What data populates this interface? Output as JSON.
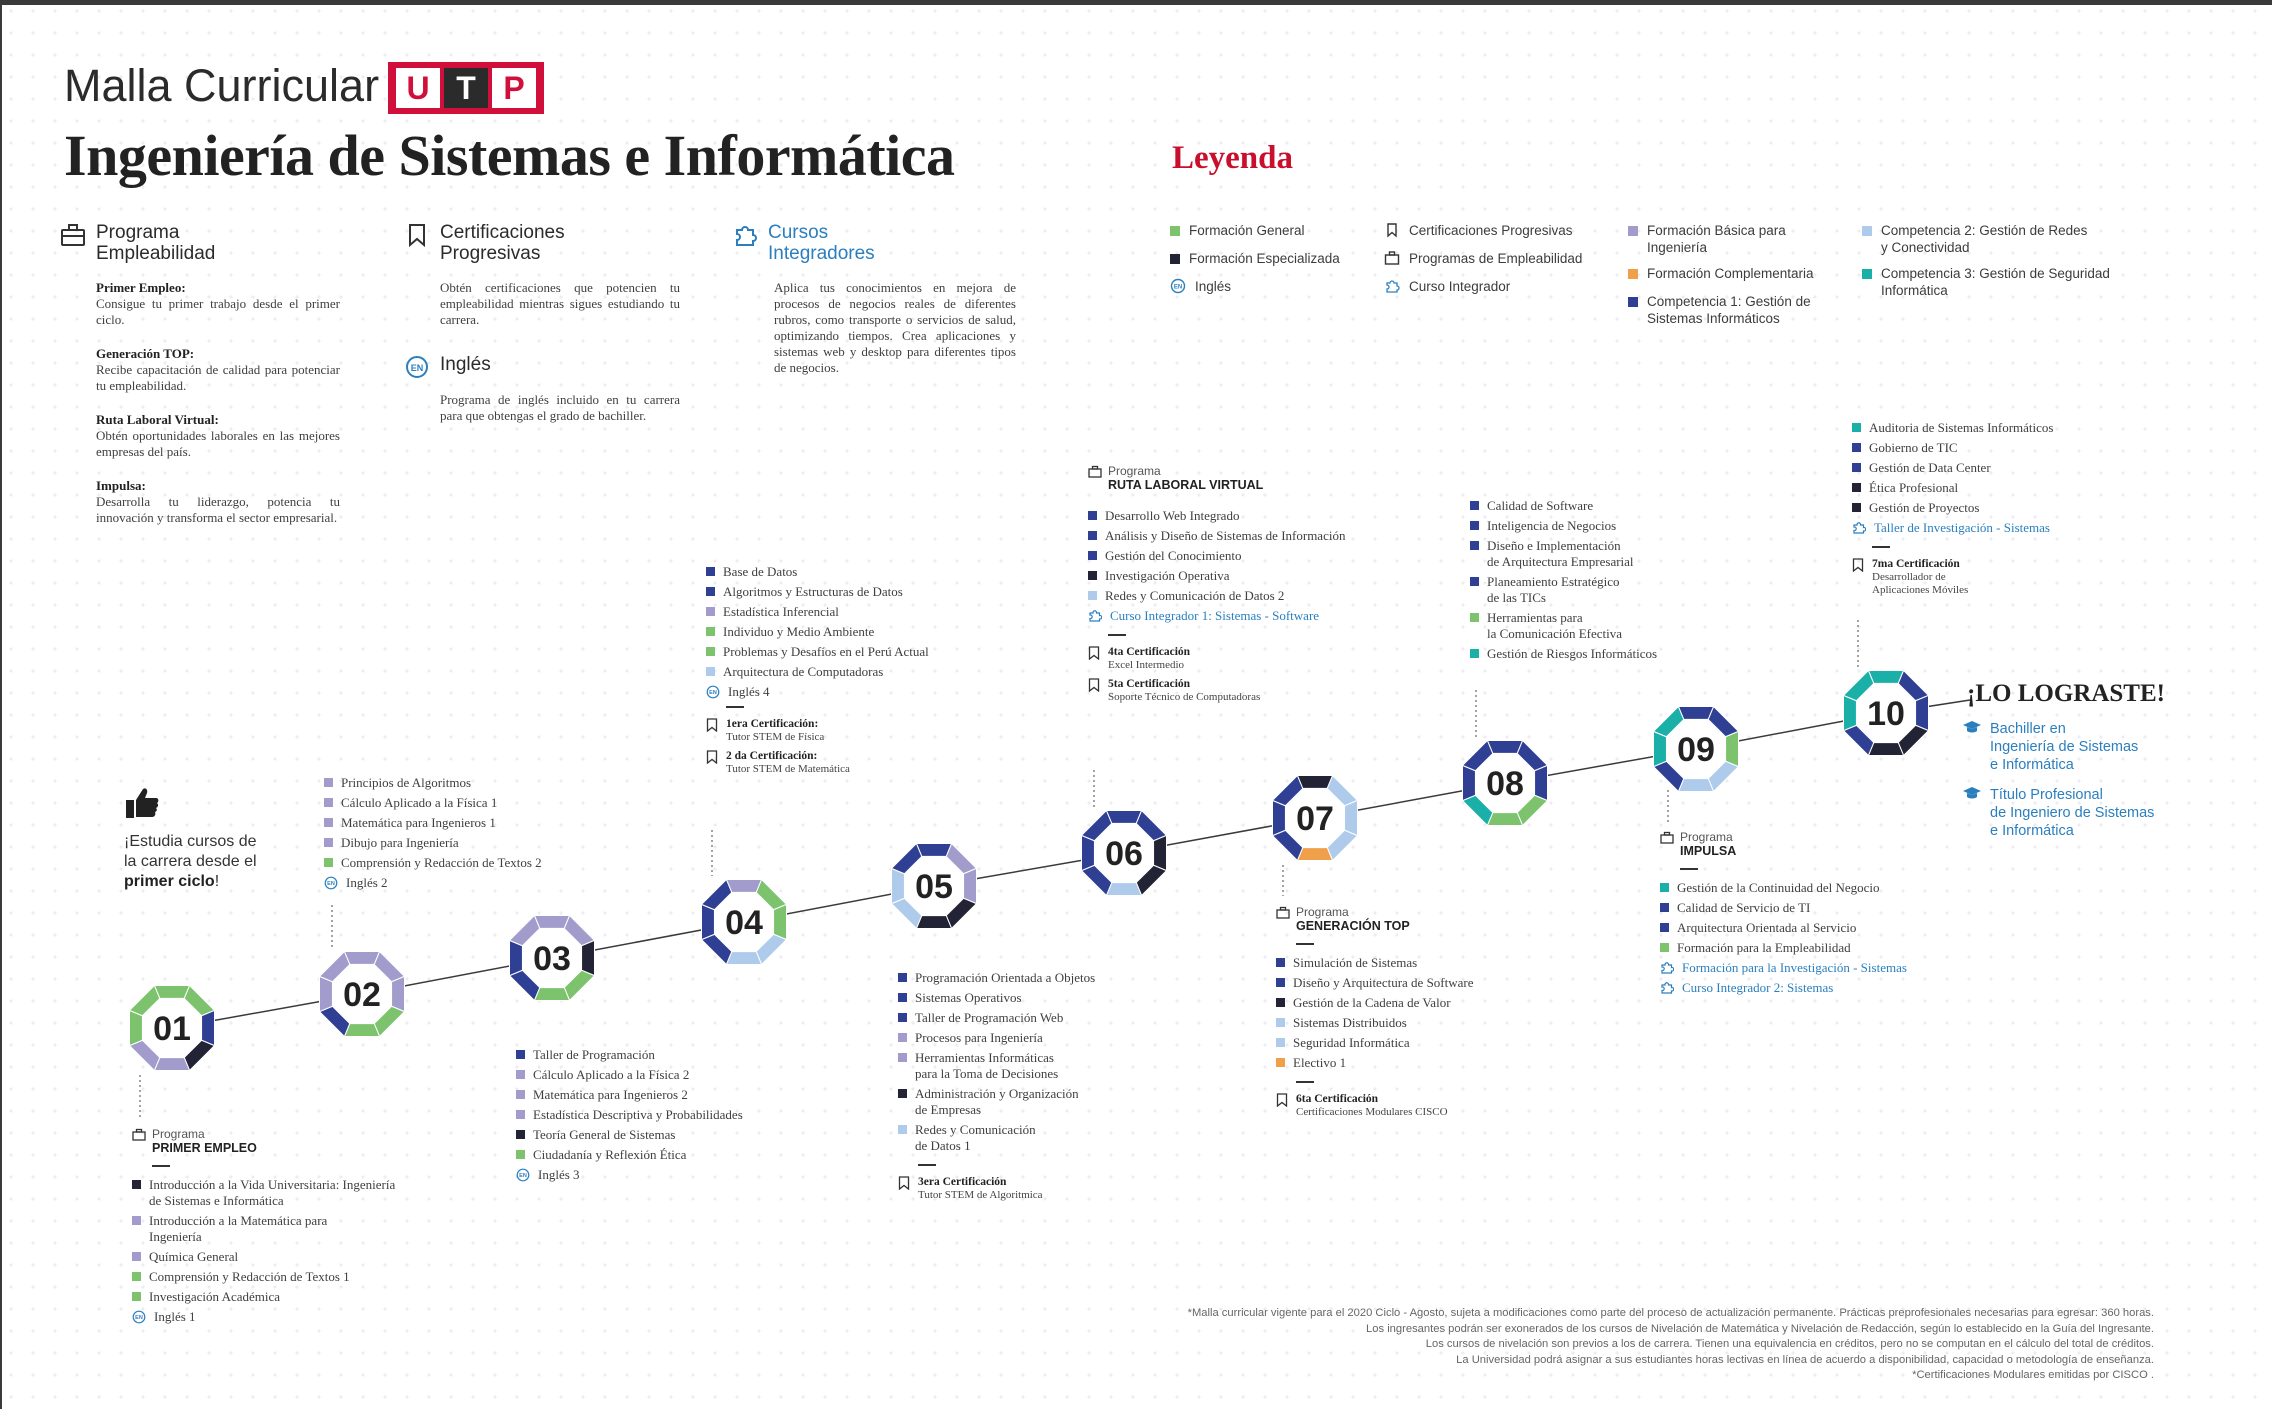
{
  "header": {
    "malla_title": "Malla Curricular",
    "logo_letters": [
      "U",
      "T",
      "P"
    ],
    "career_title": "Ingeniería de Sistemas e Informática",
    "legend_title": "Leyenda"
  },
  "programa_empleabilidad": {
    "title": "Programa\nEmpleabilidad",
    "items": [
      {
        "head": "Primer Empleo:",
        "text": "Consigue tu primer trabajo desde el primer ciclo."
      },
      {
        "head": "Generación TOP:",
        "text": "Recibe capacitación de calidad para potenciar tu empleabilidad."
      },
      {
        "head": "Ruta Laboral Virtual:",
        "text": "Obtén oportunidades laborales en las mejores empresas del país."
      },
      {
        "head": "Impulsa:",
        "text": "Desarrolla tu liderazgo, potencia tu innovación y transforma el sector empresarial."
      }
    ]
  },
  "certificaciones": {
    "title": "Certificaciones\nProgresivas",
    "text": "Obtén certificaciones que potencien tu empleabilidad mientras sigues estudiando tu carrera."
  },
  "ingles": {
    "title": "Inglés",
    "text": "Programa de inglés incluido en tu carrera para que obtengas el grado de bachiller."
  },
  "cursos_integradores": {
    "title": "Cursos\nIntegradores",
    "text": "Aplica tus conocimientos en mejora de procesos de negocios reales de diferentes rubros, como transporte o servicios de salud, optimizando tiempos. Crea aplicaciones y sistemas web y desktop para diferentes tipos de negocios."
  },
  "legend": {
    "col1": [
      {
        "label": "Formación General",
        "color": "#7dc36e"
      },
      {
        "label": "Formación Especializada",
        "color": "#232336"
      },
      {
        "label": "Inglés",
        "icon": "en-icon"
      }
    ],
    "col2": [
      {
        "label": "Certificaciones Progresivas",
        "icon": "bookmark-icon"
      },
      {
        "label": "Programas de Empleabilidad",
        "icon": "briefcase-icon"
      },
      {
        "label": "Curso Integrador",
        "icon": "puzzle-icon"
      }
    ],
    "col3": [
      {
        "label": "Formación Básica para\nIngeniería",
        "color": "#a19ccb"
      },
      {
        "label": "Formación Complementaria",
        "color": "#f0a04a"
      },
      {
        "label": "Competencia 1: Gestión de\nSistemas Informáticos",
        "color": "#2f3f93"
      }
    ],
    "col4": [
      {
        "label": "Competencia 2: Gestión de Redes\ny Conectividad",
        "color": "#aecbeb"
      },
      {
        "label": "Competencia 3: Gestión de Seguridad\nInformática",
        "color": "#1ab0a8"
      }
    ]
  },
  "colors": {
    "general": "#7dc36e",
    "especializada": "#232336",
    "basica": "#a19ccb",
    "complementaria": "#f0a04a",
    "comp1": "#2f3f93",
    "comp2": "#aecbeb",
    "comp3": "#1ab0a8",
    "blue_link": "#2b7fbf",
    "red": "#c8102e"
  },
  "cycles": [
    {
      "num": "01",
      "segments": [
        "general",
        "general",
        "comp1",
        "especializada",
        "basica",
        "basica",
        "general",
        "general"
      ]
    },
    {
      "num": "02",
      "segments": [
        "basica",
        "basica",
        "basica",
        "general",
        "general",
        "comp1",
        "basica",
        "basica"
      ]
    },
    {
      "num": "03",
      "segments": [
        "basica",
        "basica",
        "especializada",
        "general",
        "general",
        "comp1",
        "comp1",
        "basica"
      ]
    },
    {
      "num": "04",
      "segments": [
        "basica",
        "general",
        "general",
        "comp2",
        "comp2",
        "comp1",
        "comp1",
        "comp1"
      ]
    },
    {
      "num": "05",
      "segments": [
        "comp1",
        "basica",
        "basica",
        "especializada",
        "especializada",
        "comp2",
        "comp2",
        "comp1"
      ]
    },
    {
      "num": "06",
      "segments": [
        "comp1",
        "comp1",
        "especializada",
        "especializada",
        "comp2",
        "comp1",
        "comp1",
        "comp1"
      ]
    },
    {
      "num": "07",
      "segments": [
        "especializada",
        "comp2",
        "comp2",
        "comp2",
        "complementaria",
        "comp1",
        "comp1",
        "comp1"
      ]
    },
    {
      "num": "08",
      "segments": [
        "comp1",
        "comp1",
        "comp1",
        "general",
        "general",
        "comp3",
        "comp1",
        "comp1"
      ]
    },
    {
      "num": "09",
      "segments": [
        "comp1",
        "comp1",
        "general",
        "comp2",
        "comp2",
        "comp1",
        "comp3",
        "comp3"
      ]
    },
    {
      "num": "10",
      "segments": [
        "comp3",
        "comp1",
        "comp1",
        "especializada",
        "especializada",
        "comp1",
        "comp3",
        "comp3"
      ]
    }
  ],
  "estudia": {
    "line1": "¡Estudia cursos de la carrera desde el ",
    "bold": "primer ciclo",
    "end": "!"
  },
  "ciclo1": {
    "prog_label": "Programa",
    "prog_name": "PRIMER EMPLEO",
    "courses": [
      {
        "t": "Introducción a la Vida Universitaria: Ingeniería\nde Sistemas e Informática",
        "c": "especializada"
      },
      {
        "t": "Introducción a la Matemática para\nIngeniería",
        "c": "basica"
      },
      {
        "t": "Química General",
        "c": "basica"
      },
      {
        "t": "Comprensión y Redacción de Textos 1",
        "c": "general"
      },
      {
        "t": "Investigación Académica",
        "c": "general"
      },
      {
        "t": "Inglés 1",
        "c": "en"
      }
    ]
  },
  "ciclo2": {
    "courses": [
      {
        "t": "Principios de Algoritmos",
        "c": "basica"
      },
      {
        "t": "Cálculo Aplicado a la Física 1",
        "c": "basica"
      },
      {
        "t": "Matemática para Ingenieros 1",
        "c": "basica"
      },
      {
        "t": "Dibujo para Ingeniería",
        "c": "basica"
      },
      {
        "t": "Comprensión y Redacción de Textos 2",
        "c": "general"
      },
      {
        "t": "Inglés 2",
        "c": "en"
      }
    ]
  },
  "ciclo3": {
    "courses": [
      {
        "t": "Taller de Programación",
        "c": "comp1"
      },
      {
        "t": "Cálculo Aplicado a la Física 2",
        "c": "basica"
      },
      {
        "t": "Matemática para Ingenieros 2",
        "c": "basica"
      },
      {
        "t": "Estadística Descriptiva y Probabilidades",
        "c": "basica"
      },
      {
        "t": "Teoría General de Sistemas",
        "c": "especializada"
      },
      {
        "t": "Ciudadanía y Reflexión Ética",
        "c": "general"
      },
      {
        "t": "Inglés 3",
        "c": "en"
      }
    ]
  },
  "ciclo4": {
    "courses": [
      {
        "t": "Base de Datos",
        "c": "comp1"
      },
      {
        "t": "Algoritmos y Estructuras de Datos",
        "c": "comp1"
      },
      {
        "t": "Estadística Inferencial",
        "c": "basica"
      },
      {
        "t": "Individuo y Medio Ambiente",
        "c": "general"
      },
      {
        "t": "Problemas y Desafíos en el Perú Actual",
        "c": "general"
      },
      {
        "t": "Arquitectura de Computadoras",
        "c": "comp2"
      },
      {
        "t": "Inglés 4",
        "c": "en"
      }
    ],
    "certs": [
      {
        "t": "1era Certificación:",
        "s": "Tutor STEM de Física"
      },
      {
        "t": "2 da Certificación:",
        "s": "Tutor STEM de Matemática"
      }
    ]
  },
  "ciclo5": {
    "courses": [
      {
        "t": "Programación Orientada a Objetos",
        "c": "comp1"
      },
      {
        "t": "Sistemas Operativos",
        "c": "comp1"
      },
      {
        "t": "Taller de Programación Web",
        "c": "comp1"
      },
      {
        "t": "Procesos para Ingeniería",
        "c": "basica"
      },
      {
        "t": "Herramientas Informáticas\npara la Toma de Decisiones",
        "c": "basica"
      },
      {
        "t": "Administración y Organización\nde Empresas",
        "c": "especializada"
      },
      {
        "t": "Redes y Comunicación\nde Datos 1",
        "c": "comp2"
      }
    ],
    "certs": [
      {
        "t": "3era Certificación",
        "s": "Tutor STEM de Algoritmica"
      }
    ]
  },
  "ciclo6": {
    "prog_label": "Programa",
    "prog_name": "RUTA LABORAL VIRTUAL",
    "courses": [
      {
        "t": "Desarrollo Web Integrado",
        "c": "comp1"
      },
      {
        "t": "Análisis y Diseño de Sistemas de Información",
        "c": "comp1"
      },
      {
        "t": "Gestión del Conocimiento",
        "c": "comp1"
      },
      {
        "t": "Investigación Operativa",
        "c": "especializada"
      },
      {
        "t": "Redes y Comunicación de Datos 2",
        "c": "comp2"
      },
      {
        "t": "Curso Integrador 1: Sistemas - Software",
        "c": "int"
      }
    ],
    "certs": [
      {
        "t": "4ta Certificación",
        "s": "Excel Intermedio"
      },
      {
        "t": "5ta Certificación",
        "s": "Soporte Técnico de Computadoras"
      }
    ]
  },
  "ciclo7": {
    "prog_label": "Programa",
    "prog_name": "GENERACIÓN TOP",
    "courses": [
      {
        "t": "Simulación de Sistemas",
        "c": "comp1"
      },
      {
        "t": "Diseño y Arquitectura de Software",
        "c": "comp1"
      },
      {
        "t": "Gestión de la Cadena de Valor",
        "c": "especializada"
      },
      {
        "t": "Sistemas Distribuidos",
        "c": "comp2"
      },
      {
        "t": "Seguridad Informática",
        "c": "comp2"
      },
      {
        "t": "Electivo 1",
        "c": "complementaria"
      }
    ],
    "certs": [
      {
        "t": "6ta Certificación",
        "s": "Certificaciones Modulares CISCO"
      }
    ]
  },
  "ciclo8": {
    "courses": [
      {
        "t": "Calidad de Software",
        "c": "comp1"
      },
      {
        "t": "Inteligencia de Negocios",
        "c": "comp1"
      },
      {
        "t": "Diseño e Implementación\nde Arquitectura Empresarial",
        "c": "comp1"
      },
      {
        "t": "Planeamiento Estratégico\nde las TICs",
        "c": "comp1"
      },
      {
        "t": "Herramientas para\nla Comunicación Efectiva",
        "c": "general"
      },
      {
        "t": "Gestión de Riesgos Informáticos",
        "c": "comp3"
      }
    ]
  },
  "ciclo9": {
    "prog_label": "Programa",
    "prog_name": "IMPULSA",
    "courses": [
      {
        "t": "Gestión de la Continuidad del Negocio",
        "c": "comp3"
      },
      {
        "t": "Calidad de Servicio de TI",
        "c": "comp1"
      },
      {
        "t": "Arquitectura Orientada al Servicio",
        "c": "comp1"
      },
      {
        "t": "Formación para la Empleabilidad",
        "c": "general"
      },
      {
        "t": "Formación para la Investigación - Sistemas",
        "c": "int"
      },
      {
        "t": "Curso Integrador 2: Sistemas",
        "c": "int"
      }
    ]
  },
  "ciclo10": {
    "courses": [
      {
        "t": "Auditoria de Sistemas Informáticos",
        "c": "comp3"
      },
      {
        "t": "Gobierno de TIC",
        "c": "comp1"
      },
      {
        "t": "Gestión de Data Center",
        "c": "comp1"
      },
      {
        "t": "Ética Profesional",
        "c": "especializada"
      },
      {
        "t": "Gestión de Proyectos",
        "c": "especializada"
      },
      {
        "t": "Taller de Investigación - Sistemas",
        "c": "int"
      }
    ],
    "certs": [
      {
        "t": "7ma Certificación",
        "s": "Desarrollador de\nAplicaciones Móviles"
      }
    ]
  },
  "lograste": {
    "title": "¡LO LOGRASTE!",
    "items": [
      "Bachiller en\nIngeniería de Sistemas\ne Informática",
      "Título Profesional\nde Ingeniero de Sistemas\ne Informática"
    ]
  },
  "footnote": [
    "*Malla curricular vigente para el 2020 Ciclo - Agosto, sujeta a modificaciones como parte del proceso de actualización permanente. Prácticas preprofesionales necesarias para egresar: 360 horas.",
    "Los ingresantes podrán ser exonerados de los cursos de Nivelación de Matemática y Nivelación de Redacción, según lo establecido en la Guía del Ingresante.",
    "Los cursos de nivelación son previos a los de carrera. Tienen una equivalencia en créditos, pero no se computan en el cálculo del total de créditos.",
    "La Universidad podrá asignar a sus estudiantes horas lectivas en línea de acuerdo a disponibilidad, capacidad o metodología de enseñanza.",
    "*Certificaciones Modulares emitidas por CISCO ."
  ]
}
